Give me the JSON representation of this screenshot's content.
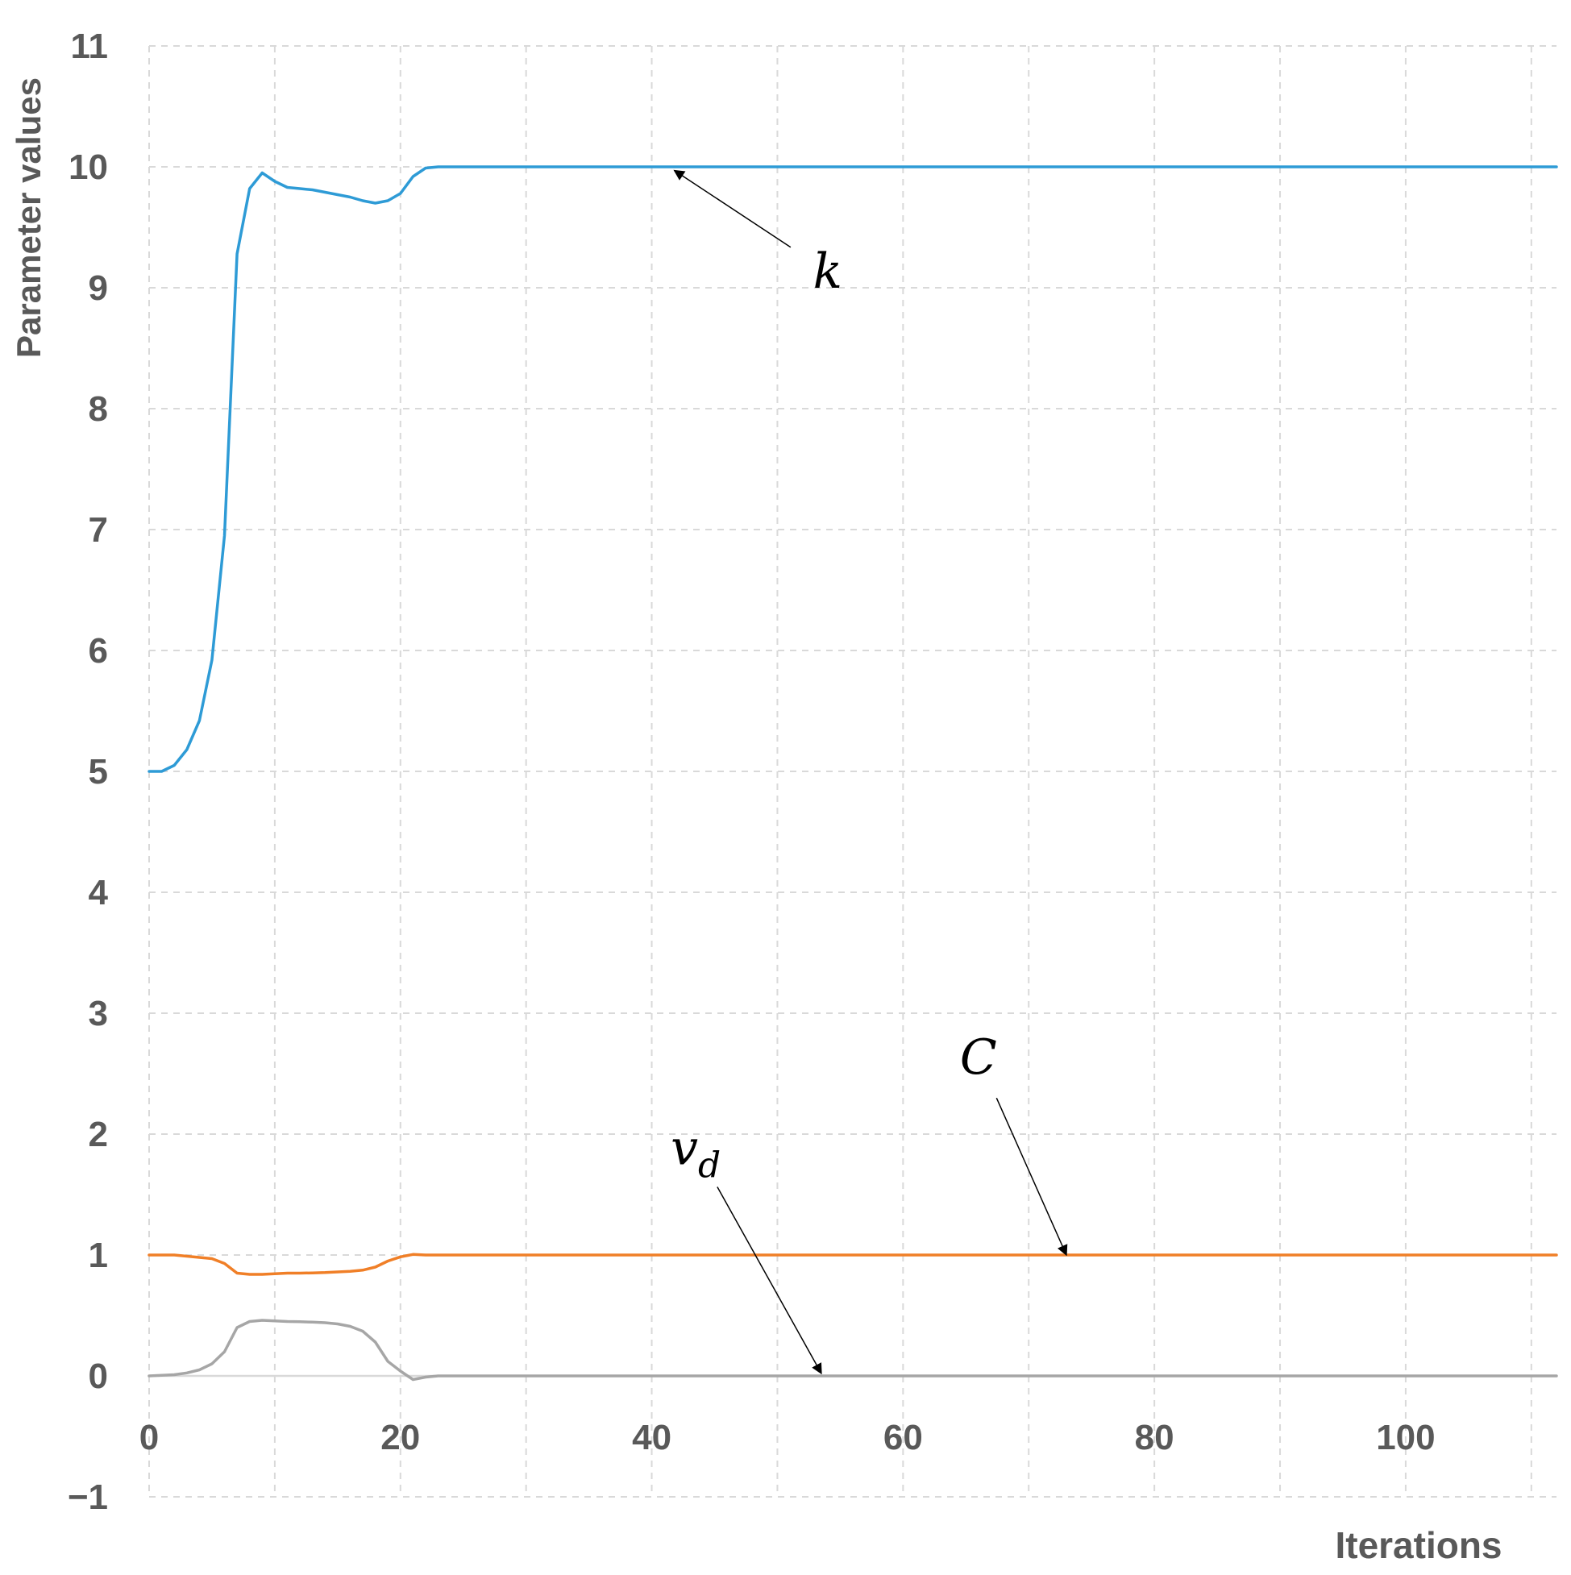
{
  "chart_data": {
    "type": "line",
    "title": "",
    "xlabel": "Iterations",
    "ylabel": "Parameter values",
    "xlim": [
      0,
      112
    ],
    "ylim": [
      -1,
      11
    ],
    "x_ticks": [
      0,
      20,
      40,
      60,
      80,
      100
    ],
    "x_tick_labels": [
      "0",
      "20",
      "40",
      "60",
      "80",
      "100"
    ],
    "x_grid": [
      10,
      20,
      30,
      40,
      50,
      60,
      70,
      80,
      90,
      100,
      110
    ],
    "y_ticks": [
      -1,
      0,
      1,
      2,
      3,
      4,
      5,
      6,
      7,
      8,
      9,
      10,
      11
    ],
    "y_tick_labels": [
      "−1",
      "0",
      "1",
      "2",
      "3",
      "4",
      "5",
      "6",
      "7",
      "8",
      "9",
      "10",
      "11"
    ],
    "grid": true,
    "legend": "none",
    "series": [
      {
        "color": "#2E9BD6",
        "points": [
          [
            0,
            5.0
          ],
          [
            1,
            5.0
          ],
          [
            2,
            5.05
          ],
          [
            3,
            5.18
          ],
          [
            4,
            5.42
          ],
          [
            5,
            5.92
          ],
          [
            6,
            6.95
          ],
          [
            7,
            9.28
          ],
          [
            8,
            9.82
          ],
          [
            9,
            9.95
          ],
          [
            10,
            9.88
          ],
          [
            11,
            9.83
          ],
          [
            12,
            9.82
          ],
          [
            13,
            9.81
          ],
          [
            14,
            9.79
          ],
          [
            15,
            9.77
          ],
          [
            16,
            9.75
          ],
          [
            17,
            9.72
          ],
          [
            18,
            9.7
          ],
          [
            19,
            9.72
          ],
          [
            20,
            9.78
          ],
          [
            21,
            9.92
          ],
          [
            22,
            9.99
          ],
          [
            23,
            10.0
          ],
          [
            30,
            10.0
          ],
          [
            40,
            10.0
          ],
          [
            60,
            10.0
          ],
          [
            80,
            10.0
          ],
          [
            100,
            10.0
          ],
          [
            112,
            10.0
          ]
        ]
      },
      {
        "color": "#F07F27",
        "points": [
          [
            0,
            1.0
          ],
          [
            1,
            1.0
          ],
          [
            2,
            1.0
          ],
          [
            3,
            0.99
          ],
          [
            4,
            0.98
          ],
          [
            5,
            0.97
          ],
          [
            6,
            0.93
          ],
          [
            7,
            0.85
          ],
          [
            8,
            0.84
          ],
          [
            9,
            0.84
          ],
          [
            10,
            0.845
          ],
          [
            11,
            0.85
          ],
          [
            12,
            0.85
          ],
          [
            13,
            0.852
          ],
          [
            14,
            0.855
          ],
          [
            15,
            0.86
          ],
          [
            16,
            0.865
          ],
          [
            17,
            0.875
          ],
          [
            18,
            0.9
          ],
          [
            19,
            0.95
          ],
          [
            20,
            0.985
          ],
          [
            21,
            1.005
          ],
          [
            22,
            1.0
          ],
          [
            23,
            1.0
          ],
          [
            30,
            1.0
          ],
          [
            60,
            1.0
          ],
          [
            100,
            1.0
          ],
          [
            112,
            1.0
          ]
        ]
      },
      {
        "color": "#A6A6A6",
        "points": [
          [
            0,
            0.0
          ],
          [
            1,
            0.005
          ],
          [
            2,
            0.01
          ],
          [
            3,
            0.025
          ],
          [
            4,
            0.05
          ],
          [
            5,
            0.1
          ],
          [
            6,
            0.2
          ],
          [
            7,
            0.4
          ],
          [
            8,
            0.45
          ],
          [
            9,
            0.46
          ],
          [
            10,
            0.455
          ],
          [
            11,
            0.45
          ],
          [
            12,
            0.448
          ],
          [
            13,
            0.445
          ],
          [
            14,
            0.44
          ],
          [
            15,
            0.43
          ],
          [
            16,
            0.41
          ],
          [
            17,
            0.37
          ],
          [
            18,
            0.28
          ],
          [
            19,
            0.12
          ],
          [
            20,
            0.04
          ],
          [
            21,
            -0.03
          ],
          [
            22,
            -0.01
          ],
          [
            23,
            0.0
          ],
          [
            30,
            0.0
          ],
          [
            60,
            0.0
          ],
          [
            100,
            0.0
          ],
          [
            112,
            0.0
          ]
        ]
      }
    ],
    "annotations": [
      {
        "text": "k",
        "text_at": [
          54.0,
          9.0
        ],
        "arrow_to": [
          41.8,
          9.97
        ]
      },
      {
        "text": "C",
        "text_at": [
          66.0,
          2.5
        ],
        "arrow_to": [
          73.0,
          1.0
        ]
      },
      {
        "text": "v",
        "sub": "d",
        "text_at": [
          43.5,
          1.75
        ],
        "arrow_to": [
          53.5,
          0.02
        ]
      }
    ]
  }
}
